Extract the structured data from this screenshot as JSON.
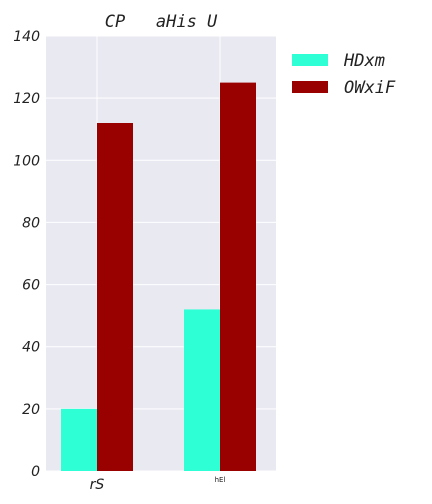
{
  "chart_data": {
    "type": "bar",
    "title": "CP   aHis U",
    "categories": [
      "rS",
      "hEl"
    ],
    "series": [
      {
        "name": "HDxm",
        "values": [
          20,
          52
        ],
        "color": "#2effd4"
      },
      {
        "name": "OWxiF",
        "values": [
          112,
          125
        ],
        "color": "#990000"
      }
    ],
    "xlabel": "",
    "ylabel": "",
    "ylim": [
      0,
      140
    ],
    "yticks": [
      0,
      20,
      40,
      60,
      80,
      100,
      120,
      140
    ],
    "grid": true,
    "legend": "outside-right",
    "plot_background": "#e9e9f2"
  }
}
